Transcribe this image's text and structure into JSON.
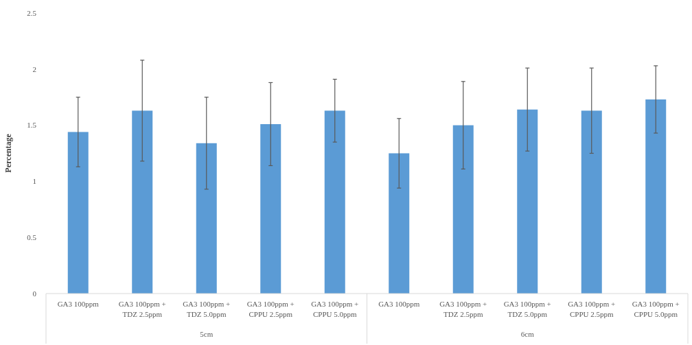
{
  "chart_data": {
    "type": "bar",
    "ylabel": "Percentage",
    "categories": [
      "GA3 100ppm",
      "GA3 100ppm + TDZ 2.5ppm",
      "GA3 100ppm + TDZ 5.0ppm",
      "GA3 100ppm + CPPU 2.5ppm",
      "GA3 100ppm + CPPU 5.0ppm",
      "GA3 100ppm",
      "GA3 100ppm + TDZ 2.5ppm",
      "GA3 100ppm + TDZ 5.0ppm",
      "GA3 100ppm + CPPU 2.5ppm",
      "GA3 100ppm + CPPU 5.0ppm"
    ],
    "values": [
      1.44,
      1.63,
      1.34,
      1.51,
      1.63,
      1.25,
      1.5,
      1.64,
      1.63,
      1.73
    ],
    "errors": [
      0.31,
      0.45,
      0.41,
      0.37,
      0.28,
      0.31,
      0.39,
      0.37,
      0.38,
      0.3
    ],
    "color": "#5b9bd5",
    "ylim": [
      0,
      2.5
    ],
    "yticks": [
      0,
      0.5,
      1,
      1.5,
      2,
      2.5
    ],
    "grid": false,
    "annotations": [
      "5cm",
      "6cm"
    ]
  }
}
